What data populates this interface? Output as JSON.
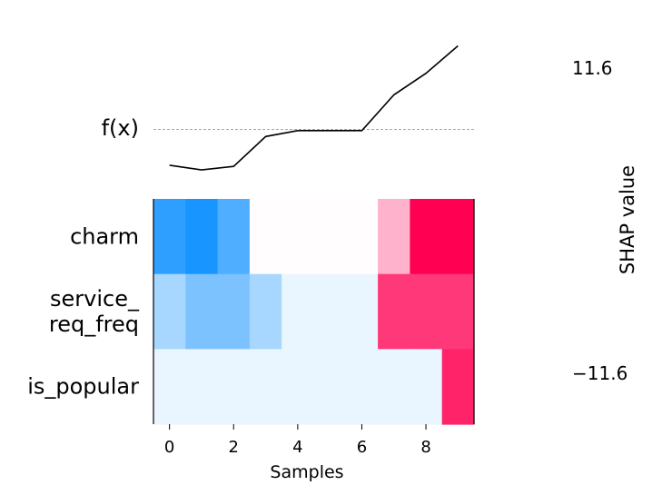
{
  "chart_data": {
    "type": "heatmap",
    "xlabel": "Samples",
    "fx_label": "f(x)",
    "colorbar_label": "SHAP value",
    "colorbar_max_label": "11.6",
    "colorbar_min_label": "−11.6",
    "vmin": -11.6,
    "vmax": 11.6,
    "x": [
      0,
      1,
      2,
      3,
      4,
      5,
      6,
      7,
      8,
      9
    ],
    "xticks": [
      0,
      2,
      4,
      6,
      8
    ],
    "xlim": [
      -0.5,
      9.5
    ],
    "features": [
      "charm",
      "service_\nreq_freq",
      "is_popular"
    ],
    "values": [
      [
        -9.5,
        -10.5,
        -8.0,
        0.1,
        0.1,
        0.1,
        0.1,
        3.5,
        11.6,
        11.6
      ],
      [
        -4.0,
        -6.0,
        -6.0,
        -4.0,
        -1.0,
        -1.0,
        -1.0,
        9.0,
        9.0,
        9.0
      ],
      [
        -1.0,
        -1.0,
        -1.0,
        -1.0,
        -1.0,
        -1.0,
        -1.0,
        -1.0,
        -1.0,
        10.0
      ]
    ],
    "fx": [
      -0.9,
      -1.1,
      -0.95,
      0.3,
      0.55,
      0.55,
      0.55,
      2.05,
      2.95,
      4.1
    ],
    "fx_ylim": [
      -1.4,
      4.5
    ],
    "base_value": 0.6
  }
}
